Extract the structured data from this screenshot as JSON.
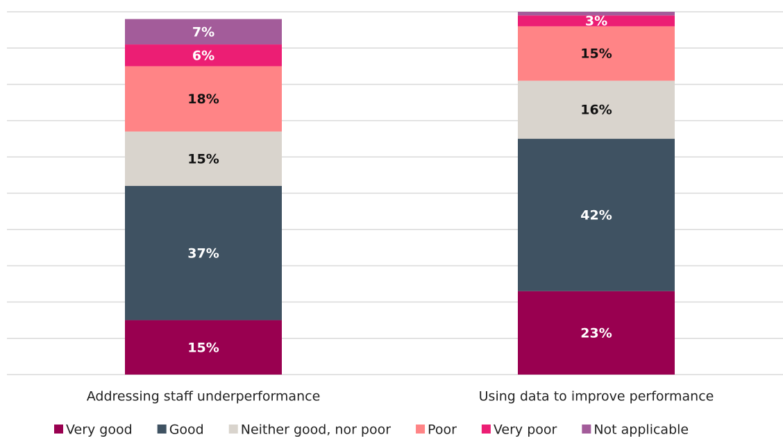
{
  "chart_data": {
    "type": "stacked_bar",
    "categories": [
      "Addressing staff underperformance",
      "Using data to improve performance"
    ],
    "series": [
      {
        "name": "Very good",
        "color": "#990050",
        "label_color": "#ffffff",
        "values": [
          15,
          23
        ],
        "value_labels": [
          "15%",
          "23%"
        ]
      },
      {
        "name": "Good",
        "color": "#3f5262",
        "label_color": "#ffffff",
        "values": [
          37,
          42
        ],
        "value_labels": [
          "37%",
          "42%"
        ]
      },
      {
        "name": "Neither good, nor poor",
        "color": "#d9d4cd",
        "label_color": "#111111",
        "values": [
          15,
          16
        ],
        "value_labels": [
          "15%",
          "16%"
        ]
      },
      {
        "name": "Poor",
        "color": "#ff8486",
        "label_color": "#111111",
        "values": [
          18,
          15
        ],
        "value_labels": [
          "18%",
          "15%"
        ]
      },
      {
        "name": "Very poor",
        "color": "#ec1e74",
        "label_color": "#ffffff",
        "values": [
          6,
          3
        ],
        "value_labels": [
          "6%",
          "3%"
        ]
      },
      {
        "name": "Not applicable",
        "color": "#a35c9a",
        "label_color": "#ffffff",
        "values": [
          7,
          1
        ],
        "value_labels": [
          "7%",
          null
        ]
      }
    ],
    "ylim": [
      0,
      100
    ],
    "yticks": [
      0,
      10,
      20,
      30,
      40,
      50,
      60,
      70,
      80,
      90,
      100
    ],
    "grid": true,
    "legend": "bottom"
  }
}
